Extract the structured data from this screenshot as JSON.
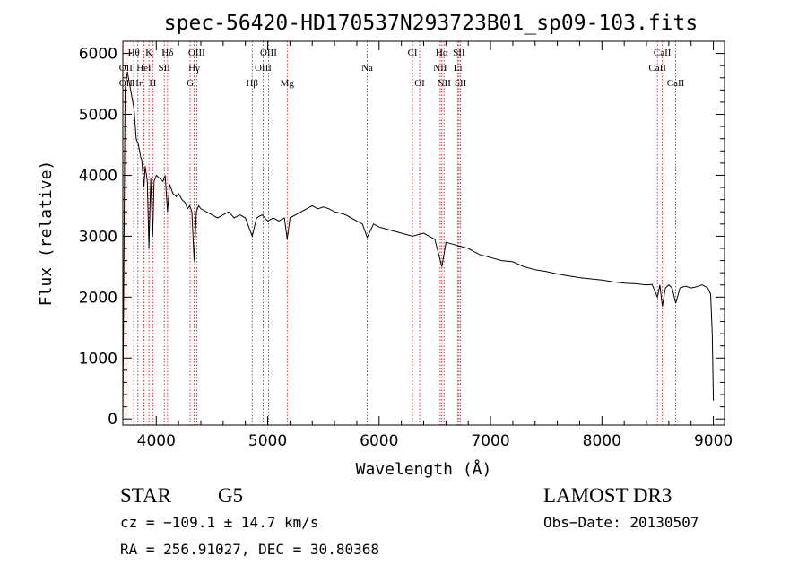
{
  "chart_data": {
    "type": "line",
    "title": "spec-56420-HD170537N293723B01_sp09-103.fits",
    "xlabel": "Wavelength (Å)",
    "ylabel": "Flux (relative)",
    "xlim": [
      3700,
      9100
    ],
    "ylim": [
      -100,
      6200
    ],
    "xticks": [
      4000,
      5000,
      6000,
      7000,
      8000,
      9000
    ],
    "yticks": [
      0,
      1000,
      2000,
      3000,
      4000,
      5000,
      6000
    ],
    "xminor_step": 200,
    "yminor_step": 200,
    "series": [
      {
        "name": "spectrum",
        "x": [
          3700,
          3720,
          3740,
          3760,
          3780,
          3800,
          3820,
          3840,
          3860,
          3870,
          3889,
          3900,
          3920,
          3934,
          3950,
          3968,
          3980,
          4000,
          4030,
          4060,
          4080,
          4101,
          4120,
          4150,
          4180,
          4200,
          4230,
          4260,
          4280,
          4300,
          4320,
          4340,
          4360,
          4380,
          4400,
          4450,
          4500,
          4550,
          4600,
          4650,
          4700,
          4750,
          4800,
          4861,
          4900,
          4950,
          5000,
          5050,
          5100,
          5150,
          5175,
          5200,
          5250,
          5300,
          5350,
          5400,
          5450,
          5500,
          5550,
          5600,
          5650,
          5700,
          5750,
          5800,
          5850,
          5893,
          5950,
          6000,
          6100,
          6200,
          6300,
          6400,
          6500,
          6563,
          6600,
          6700,
          6800,
          6900,
          7000,
          7100,
          7200,
          7300,
          7400,
          7500,
          7600,
          7700,
          7800,
          7900,
          8000,
          8100,
          8200,
          8300,
          8400,
          8450,
          8498,
          8520,
          8542,
          8570,
          8600,
          8630,
          8662,
          8700,
          8750,
          8800,
          8850,
          8900,
          8950,
          8975,
          8990,
          9000
        ],
        "y": [
          0,
          5400,
          5700,
          5500,
          5300,
          5100,
          4600,
          4500,
          4300,
          4250,
          3800,
          4150,
          3900,
          2800,
          3950,
          3000,
          3900,
          4000,
          3950,
          3900,
          4000,
          3400,
          3850,
          3700,
          3650,
          3700,
          3600,
          3550,
          3450,
          3500,
          3400,
          2600,
          3400,
          3500,
          3450,
          3400,
          3350,
          3300,
          3350,
          3400,
          3300,
          3350,
          3300,
          3000,
          3300,
          3350,
          3250,
          3300,
          3250,
          3300,
          2950,
          3300,
          3350,
          3400,
          3450,
          3500,
          3450,
          3480,
          3450,
          3400,
          3380,
          3350,
          3300,
          3250,
          3200,
          2980,
          3200,
          3150,
          3100,
          3050,
          3000,
          3050,
          2950,
          2500,
          2900,
          2850,
          2800,
          2700,
          2650,
          2600,
          2580,
          2500,
          2450,
          2420,
          2380,
          2350,
          2320,
          2300,
          2280,
          2250,
          2230,
          2220,
          2200,
          2210,
          2000,
          2200,
          1850,
          2150,
          2200,
          2150,
          1900,
          2150,
          2180,
          2150,
          2170,
          2200,
          2150,
          2050,
          1400,
          300
        ]
      }
    ],
    "lines_top": [
      {
        "label": "Hθ",
        "x": 3798
      },
      {
        "label": "K",
        "x": 3934
      },
      {
        "label": "Hδ",
        "x": 4101
      },
      {
        "label": "OIII",
        "x": 4363
      },
      {
        "label": "OIII",
        "x": 5007
      },
      {
        "label": "CI",
        "x": 6300
      },
      {
        "label": "Hα",
        "x": 6563
      },
      {
        "label": "SII",
        "x": 6717
      },
      {
        "label": "CaII",
        "x": 8542
      }
    ],
    "lines_mid": [
      {
        "label": "OII",
        "x": 3727
      },
      {
        "label": "HeI",
        "x": 3889
      },
      {
        "label": "SII",
        "x": 4072
      },
      {
        "label": "Hγ",
        "x": 4340
      },
      {
        "label": "OIII",
        "x": 4959
      },
      {
        "label": "Na",
        "x": 5893
      },
      {
        "label": "NII",
        "x": 6548
      },
      {
        "label": "Li",
        "x": 6707
      },
      {
        "label": "CaII",
        "x": 8498
      }
    ],
    "lines_low": [
      {
        "label": "OII",
        "x": 3727
      },
      {
        "label": "Hη",
        "x": 3835
      },
      {
        "label": "H",
        "x": 3968
      },
      {
        "label": "G",
        "x": 4304
      },
      {
        "label": "Hβ",
        "x": 4861
      },
      {
        "label": "Mg",
        "x": 5175
      },
      {
        "label": "OI",
        "x": 6364
      },
      {
        "label": "NII",
        "x": 6583
      },
      {
        "label": "SII",
        "x": 6731
      },
      {
        "label": "CaII",
        "x": 8662
      }
    ]
  },
  "info": {
    "class": "STAR",
    "subclass": "G5",
    "survey": "LAMOST DR3",
    "cz": "cz = −109.1 ± 14.7 km/s",
    "obs_date": "Obs−Date: 20130507",
    "coords": "RA = 256.91027, DEC =  30.80368"
  }
}
